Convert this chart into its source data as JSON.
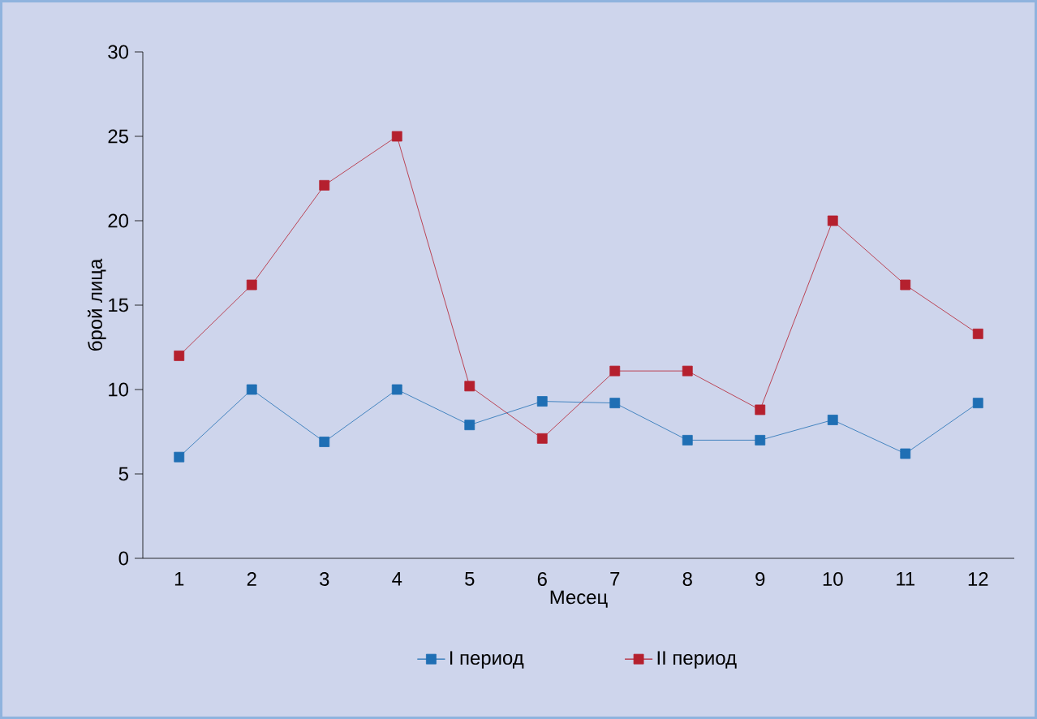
{
  "chart_data": {
    "type": "line",
    "xlabel": "Месец",
    "ylabel": "брой лица",
    "categories": [
      "1",
      "2",
      "3",
      "4",
      "5",
      "6",
      "7",
      "8",
      "9",
      "10",
      "11",
      "12"
    ],
    "series": [
      {
        "name": "I период",
        "color": "#1f6fb4",
        "values": [
          6,
          10,
          6.9,
          10,
          7.9,
          9.3,
          9.2,
          7,
          7,
          8.2,
          6.2,
          9.2
        ]
      },
      {
        "name": "II период",
        "color": "#b5202e",
        "values": [
          12,
          16.2,
          22.1,
          25,
          10.2,
          7.1,
          11.1,
          11.1,
          8.8,
          20,
          16.2,
          13.3
        ]
      }
    ],
    "ylim": [
      0,
      30
    ],
    "yticks": [
      0,
      5,
      10,
      15,
      20,
      25,
      30
    ],
    "legend": "bottom",
    "marker": "square",
    "line_style": "solid",
    "grid": false
  }
}
